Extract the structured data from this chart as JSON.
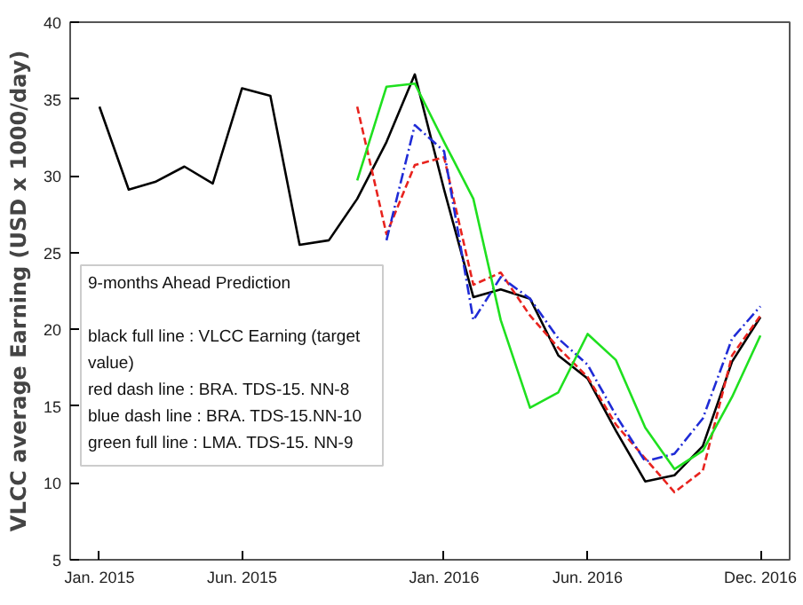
{
  "chart_data": {
    "type": "line",
    "ylabel": "VLCC average Earning (USD x 1000/day)",
    "x": [
      "2015-01",
      "2015-02",
      "2015-03",
      "2015-04",
      "2015-05",
      "2015-06",
      "2015-07",
      "2015-08",
      "2015-09",
      "2015-10",
      "2015-11",
      "2015-12",
      "2016-01",
      "2016-02",
      "2016-03",
      "2016-04",
      "2016-05",
      "2016-06",
      "2016-07",
      "2016-08",
      "2016-09",
      "2016-10",
      "2016-11",
      "2016-12"
    ],
    "series": [
      {
        "color": "#000000",
        "line_style": "solid",
        "values": [
          34.5,
          29.1,
          29.6,
          30.6,
          29.5,
          35.7,
          35.2,
          25.5,
          25.8,
          28.5,
          32.2,
          36.6,
          29.1,
          22.1,
          22.6,
          22.0,
          18.3,
          16.8,
          13.4,
          10.1,
          10.5,
          12.4,
          17.9,
          20.8
        ]
      },
      {
        "color": "#e8231e",
        "line_style": "dashed",
        "values": [
          null,
          null,
          null,
          null,
          null,
          null,
          null,
          null,
          null,
          34.5,
          26.2,
          30.7,
          31.2,
          22.9,
          23.7,
          20.9,
          18.8,
          16.9,
          13.8,
          11.6,
          9.4,
          10.8,
          18.3,
          20.9
        ]
      },
      {
        "color": "#1f2bd6",
        "line_style": "dashdot",
        "values": [
          null,
          null,
          null,
          null,
          null,
          null,
          null,
          null,
          null,
          null,
          25.8,
          33.3,
          31.6,
          20.6,
          23.4,
          22.0,
          19.4,
          17.7,
          14.4,
          11.4,
          11.9,
          14.2,
          19.4,
          21.5
        ]
      },
      {
        "color": "#1fe01f",
        "line_style": "solid",
        "values": [
          null,
          null,
          null,
          null,
          null,
          null,
          null,
          null,
          null,
          29.7,
          35.8,
          36.0,
          32.2,
          28.5,
          20.6,
          14.9,
          15.9,
          19.7,
          18.0,
          13.6,
          10.9,
          12.1,
          15.6,
          19.6
        ]
      }
    ],
    "xlim": [
      "2014-12",
      "2017-01"
    ],
    "xticks": [
      {
        "value": "2015-01",
        "label": "Jan. 2015"
      },
      {
        "value": "2015-06",
        "label": "Jun. 2015"
      },
      {
        "value": "2016-01",
        "label": "Jan. 2016"
      },
      {
        "value": "2016-06",
        "label": "Jun. 2016"
      },
      {
        "value": "2016-12",
        "label": "Dec. 2016"
      }
    ],
    "ylim": [
      5,
      40
    ],
    "yticks": [
      5,
      10,
      15,
      20,
      25,
      30,
      35,
      40
    ],
    "grid": false,
    "annotations": [
      "9-months Ahead Prediction",
      "black full line : VLCC Earning (target value)",
      "red dash line    :  BRA. TDS-15. NN-8",
      "blue dash line : BRA. TDS-15.NN-10",
      "green full line : LMA. TDS-15. NN-9"
    ]
  }
}
